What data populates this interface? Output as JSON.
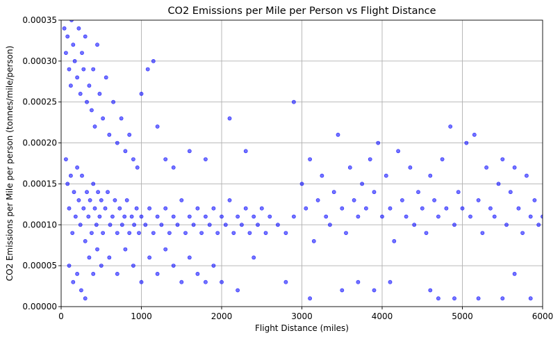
{
  "chart_data": {
    "type": "scatter",
    "title": "CO2 Emissions per Mile per Person vs Flight Distance",
    "xlabel": "Flight Distance (miles)",
    "ylabel": "CO2 Emissions per Mile per person (tonnes/mile/person)",
    "xlim": [
      0,
      6000
    ],
    "ylim": [
      0,
      0.00035
    ],
    "x_ticks": [
      0,
      1000,
      2000,
      3000,
      4000,
      5000,
      6000
    ],
    "x_tick_labels": [
      "0",
      "1000",
      "2000",
      "3000",
      "4000",
      "5000",
      "6000"
    ],
    "y_ticks": [
      0,
      5e-05,
      0.0001,
      0.00015,
      0.0002,
      0.00025,
      0.0003,
      0.00035
    ],
    "y_tick_labels": [
      "0.00000",
      "0.00005",
      "0.00010",
      "0.00015",
      "0.00020",
      "0.00025",
      "0.00030",
      "0.00035"
    ],
    "grid": true,
    "marker_color": "#0000ff",
    "series": [
      {
        "points": [
          [
            40,
            0.00034
          ],
          [
            60,
            0.00031
          ],
          [
            80,
            0.00033
          ],
          [
            100,
            0.00029
          ],
          [
            120,
            0.00027
          ],
          [
            130,
            0.00035
          ],
          [
            150,
            0.00032
          ],
          [
            170,
            0.0003
          ],
          [
            200,
            0.00028
          ],
          [
            220,
            0.00034
          ],
          [
            240,
            0.00026
          ],
          [
            260,
            0.00031
          ],
          [
            280,
            0.00029
          ],
          [
            300,
            0.00033
          ],
          [
            320,
            0.00025
          ],
          [
            350,
            0.00027
          ],
          [
            380,
            0.00024
          ],
          [
            400,
            0.00029
          ],
          [
            420,
            0.00022
          ],
          [
            450,
            0.00032
          ],
          [
            480,
            0.00026
          ],
          [
            520,
            0.00023
          ],
          [
            560,
            0.00028
          ],
          [
            600,
            0.00021
          ],
          [
            650,
            0.00025
          ],
          [
            700,
            0.0002
          ],
          [
            750,
            0.00023
          ],
          [
            800,
            0.00019
          ],
          [
            850,
            0.00021
          ],
          [
            900,
            0.00018
          ],
          [
            950,
            0.00017
          ],
          [
            1000,
            0.00026
          ],
          [
            1080,
            0.00029
          ],
          [
            1150,
            0.0003
          ],
          [
            1200,
            0.00022
          ],
          [
            1300,
            0.00018
          ],
          [
            1400,
            0.00017
          ],
          [
            1600,
            0.00019
          ],
          [
            1800,
            0.00018
          ],
          [
            2100,
            0.00023
          ],
          [
            2300,
            0.00019
          ],
          [
            2900,
            0.00025
          ],
          [
            60,
            0.00018
          ],
          [
            80,
            0.00015
          ],
          [
            100,
            0.00012
          ],
          [
            120,
            0.00016
          ],
          [
            140,
            9e-05
          ],
          [
            160,
            0.00014
          ],
          [
            180,
            0.00011
          ],
          [
            200,
            0.00017
          ],
          [
            220,
            0.00013
          ],
          [
            240,
            0.0001
          ],
          [
            260,
            0.00016
          ],
          [
            280,
            0.00012
          ],
          [
            300,
            8e-05
          ],
          [
            320,
            0.00014
          ],
          [
            340,
            0.00011
          ],
          [
            360,
            0.00013
          ],
          [
            380,
            9e-05
          ],
          [
            400,
            0.00015
          ],
          [
            420,
            0.00012
          ],
          [
            440,
            0.0001
          ],
          [
            460,
            0.00014
          ],
          [
            480,
            0.00011
          ],
          [
            500,
            0.00013
          ],
          [
            520,
            9e-05
          ],
          [
            550,
            0.00012
          ],
          [
            580,
            0.00014
          ],
          [
            610,
            0.0001
          ],
          [
            640,
            0.00011
          ],
          [
            670,
            0.00013
          ],
          [
            700,
            9e-05
          ],
          [
            730,
            0.00012
          ],
          [
            760,
            0.0001
          ],
          [
            790,
            0.00011
          ],
          [
            820,
            0.00013
          ],
          [
            850,
            9e-05
          ],
          [
            880,
            0.00011
          ],
          [
            910,
            0.0001
          ],
          [
            940,
            0.00012
          ],
          [
            970,
            9e-05
          ],
          [
            1000,
            0.00011
          ],
          [
            1050,
            0.0001
          ],
          [
            1100,
            0.00012
          ],
          [
            1150,
            9e-05
          ],
          [
            1200,
            0.00011
          ],
          [
            1250,
            0.0001
          ],
          [
            1300,
            0.00012
          ],
          [
            1350,
            9e-05
          ],
          [
            1400,
            0.00011
          ],
          [
            1450,
            0.0001
          ],
          [
            1500,
            0.00013
          ],
          [
            1550,
            9e-05
          ],
          [
            1600,
            0.00011
          ],
          [
            1650,
            0.0001
          ],
          [
            1700,
            0.00012
          ],
          [
            1750,
            9e-05
          ],
          [
            1800,
            0.00011
          ],
          [
            1850,
            0.0001
          ],
          [
            1900,
            0.00012
          ],
          [
            1950,
            9e-05
          ],
          [
            2000,
            0.00011
          ],
          [
            2050,
            0.0001
          ],
          [
            2100,
            0.00013
          ],
          [
            2150,
            9e-05
          ],
          [
            2200,
            0.00011
          ],
          [
            2250,
            0.0001
          ],
          [
            2300,
            0.00012
          ],
          [
            2350,
            9e-05
          ],
          [
            2400,
            0.00011
          ],
          [
            2450,
            0.0001
          ],
          [
            2500,
            0.00012
          ],
          [
            2550,
            9e-05
          ],
          [
            2600,
            0.00011
          ],
          [
            2700,
            0.0001
          ],
          [
            2800,
            9e-05
          ],
          [
            2900,
            0.00011
          ],
          [
            100,
            5e-05
          ],
          [
            150,
            3e-05
          ],
          [
            200,
            4e-05
          ],
          [
            250,
            2e-05
          ],
          [
            300,
            1e-05
          ],
          [
            350,
            6e-05
          ],
          [
            400,
            4e-05
          ],
          [
            450,
            7e-05
          ],
          [
            500,
            5e-05
          ],
          [
            600,
            6e-05
          ],
          [
            700,
            4e-05
          ],
          [
            800,
            7e-05
          ],
          [
            900,
            5e-05
          ],
          [
            1000,
            3e-05
          ],
          [
            1100,
            6e-05
          ],
          [
            1200,
            4e-05
          ],
          [
            1300,
            7e-05
          ],
          [
            1400,
            5e-05
          ],
          [
            1500,
            3e-05
          ],
          [
            1600,
            6e-05
          ],
          [
            1700,
            4e-05
          ],
          [
            1800,
            3e-05
          ],
          [
            1900,
            5e-05
          ],
          [
            2000,
            3e-05
          ],
          [
            2200,
            2e-05
          ],
          [
            2400,
            6e-05
          ],
          [
            2800,
            3e-05
          ],
          [
            3100,
            1e-05
          ],
          [
            3500,
            2e-05
          ],
          [
            3700,
            3e-05
          ],
          [
            3900,
            2e-05
          ],
          [
            4100,
            3e-05
          ],
          [
            4600,
            2e-05
          ],
          [
            4700,
            1e-05
          ],
          [
            4900,
            1e-05
          ],
          [
            5200,
            1e-05
          ],
          [
            5500,
            1e-05
          ],
          [
            5650,
            4e-05
          ],
          [
            5850,
            1e-05
          ],
          [
            3000,
            0.00015
          ],
          [
            3050,
            0.00012
          ],
          [
            3100,
            0.00018
          ],
          [
            3150,
            8e-05
          ],
          [
            3200,
            0.00013
          ],
          [
            3250,
            0.00016
          ],
          [
            3300,
            0.00011
          ],
          [
            3350,
            0.0001
          ],
          [
            3400,
            0.00014
          ],
          [
            3450,
            0.00021
          ],
          [
            3500,
            0.00012
          ],
          [
            3550,
            9e-05
          ],
          [
            3600,
            0.00017
          ],
          [
            3650,
            0.00013
          ],
          [
            3700,
            0.00011
          ],
          [
            3750,
            0.00015
          ],
          [
            3800,
            0.00012
          ],
          [
            3850,
            0.00018
          ],
          [
            3900,
            0.00014
          ],
          [
            3950,
            0.0002
          ],
          [
            4000,
            0.00011
          ],
          [
            4050,
            0.00016
          ],
          [
            4100,
            0.00012
          ],
          [
            4150,
            8e-05
          ],
          [
            4200,
            0.00019
          ],
          [
            4250,
            0.00013
          ],
          [
            4300,
            0.00011
          ],
          [
            4350,
            0.00017
          ],
          [
            4400,
            0.0001
          ],
          [
            4450,
            0.00014
          ],
          [
            4500,
            0.00012
          ],
          [
            4550,
            9e-05
          ],
          [
            4600,
            0.00016
          ],
          [
            4650,
            0.00013
          ],
          [
            4700,
            0.00011
          ],
          [
            4750,
            0.00018
          ],
          [
            4800,
            0.00012
          ],
          [
            4850,
            0.00022
          ],
          [
            4900,
            0.0001
          ],
          [
            4950,
            0.00014
          ],
          [
            5000,
            0.00012
          ],
          [
            5050,
            0.0002
          ],
          [
            5100,
            0.00011
          ],
          [
            5150,
            0.00021
          ],
          [
            5200,
            0.00013
          ],
          [
            5250,
            9e-05
          ],
          [
            5300,
            0.00017
          ],
          [
            5350,
            0.00012
          ],
          [
            5400,
            0.00011
          ],
          [
            5450,
            0.00015
          ],
          [
            5500,
            0.00018
          ],
          [
            5550,
            0.0001
          ],
          [
            5600,
            0.00014
          ],
          [
            5650,
            0.00017
          ],
          [
            5700,
            0.00012
          ],
          [
            5750,
            9e-05
          ],
          [
            5800,
            0.00016
          ],
          [
            5850,
            0.00011
          ],
          [
            5900,
            0.00013
          ],
          [
            5950,
            0.0001
          ],
          [
            6000,
            0.00011
          ]
        ]
      }
    ]
  }
}
